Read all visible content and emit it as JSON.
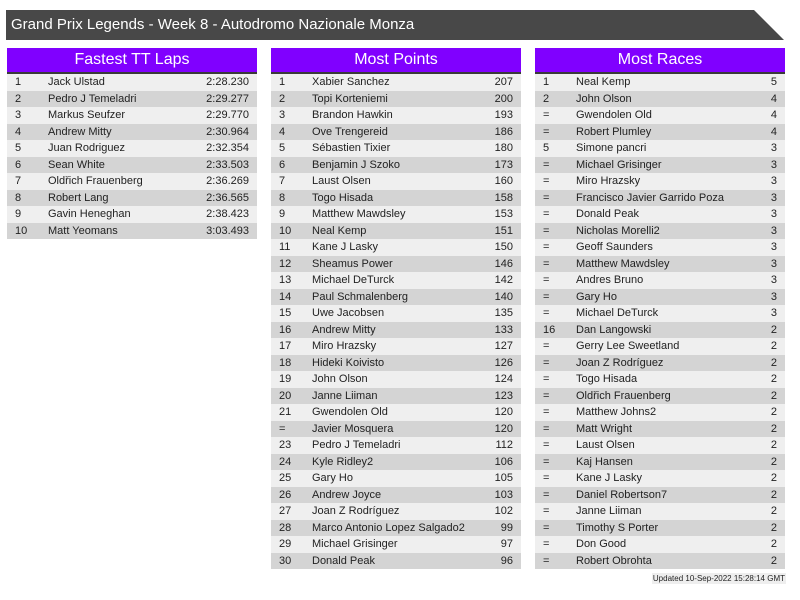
{
  "title": "Grand Prix Legends - Week 8 - Autodromo Nazionale Monza",
  "colors": {
    "header": "#8000ff",
    "title_bar": "#484848",
    "row_light": "#efefef",
    "row_dark": "#d4d4d4"
  },
  "tables": [
    {
      "title": "Fastest TT Laps",
      "rows": [
        [
          "1",
          "Jack Ulstad",
          "2:28.230"
        ],
        [
          "2",
          "Pedro J Temeladri",
          "2:29.277"
        ],
        [
          "3",
          "Markus Seufzer",
          "2:29.770"
        ],
        [
          "4",
          "Andrew Mitty",
          "2:30.964"
        ],
        [
          "5",
          "Juan Rodriguez",
          "2:32.354"
        ],
        [
          "6",
          "Sean White",
          "2:33.503"
        ],
        [
          "7",
          "Oldřich Frauenberg",
          "2:36.269"
        ],
        [
          "8",
          "Robert Lang",
          "2:36.565"
        ],
        [
          "9",
          "Gavin Heneghan",
          "2:38.423"
        ],
        [
          "10",
          "Matt Yeomans",
          "3:03.493"
        ]
      ]
    },
    {
      "title": "Most Points",
      "rows": [
        [
          "1",
          "Xabier Sanchez",
          "207"
        ],
        [
          "2",
          "Topi Korteniemi",
          "200"
        ],
        [
          "3",
          "Brandon Hawkin",
          "193"
        ],
        [
          "4",
          "Ove Trengereid",
          "186"
        ],
        [
          "5",
          "Sébastien Tixier",
          "180"
        ],
        [
          "6",
          "Benjamin J Szoko",
          "173"
        ],
        [
          "7",
          "Laust Olsen",
          "160"
        ],
        [
          "8",
          "Togo Hisada",
          "158"
        ],
        [
          "9",
          "Matthew Mawdsley",
          "153"
        ],
        [
          "10",
          "Neal Kemp",
          "151"
        ],
        [
          "11",
          "Kane J Lasky",
          "150"
        ],
        [
          "12",
          "Sheamus Power",
          "146"
        ],
        [
          "13",
          "Michael DeTurck",
          "142"
        ],
        [
          "14",
          "Paul Schmalenberg",
          "140"
        ],
        [
          "15",
          "Uwe Jacobsen",
          "135"
        ],
        [
          "16",
          "Andrew Mitty",
          "133"
        ],
        [
          "17",
          "Miro Hrazsky",
          "127"
        ],
        [
          "18",
          "Hideki Koivisto",
          "126"
        ],
        [
          "19",
          "John Olson",
          "124"
        ],
        [
          "20",
          "Janne Liiman",
          "123"
        ],
        [
          "21",
          "Gwendolen Old",
          "120"
        ],
        [
          "=",
          "Javier Mosquera",
          "120"
        ],
        [
          "23",
          "Pedro J Temeladri",
          "112"
        ],
        [
          "24",
          "Kyle Ridley2",
          "106"
        ],
        [
          "25",
          "Gary Ho",
          "105"
        ],
        [
          "26",
          "Andrew Joyce",
          "103"
        ],
        [
          "27",
          "Joan Z Rodríguez",
          "102"
        ],
        [
          "28",
          "Marco Antonio Lopez Salgado2",
          "99"
        ],
        [
          "29",
          "Michael Grisinger",
          "97"
        ],
        [
          "30",
          "Donald Peak",
          "96"
        ]
      ]
    },
    {
      "title": "Most Races",
      "rows": [
        [
          "1",
          "Neal Kemp",
          "5"
        ],
        [
          "2",
          "John Olson",
          "4"
        ],
        [
          "=",
          "Gwendolen Old",
          "4"
        ],
        [
          "=",
          "Robert Plumley",
          "4"
        ],
        [
          "5",
          "Simone pancri",
          "3"
        ],
        [
          "=",
          "Michael Grisinger",
          "3"
        ],
        [
          "=",
          "Miro Hrazsky",
          "3"
        ],
        [
          "=",
          "Francisco Javier Garrido Poza",
          "3"
        ],
        [
          "=",
          "Donald Peak",
          "3"
        ],
        [
          "=",
          "Nicholas Morelli2",
          "3"
        ],
        [
          "=",
          "Geoff Saunders",
          "3"
        ],
        [
          "=",
          "Matthew Mawdsley",
          "3"
        ],
        [
          "=",
          "Andres Bruno",
          "3"
        ],
        [
          "=",
          "Gary Ho",
          "3"
        ],
        [
          "=",
          "Michael DeTurck",
          "3"
        ],
        [
          "16",
          "Dan Langowski",
          "2"
        ],
        [
          "=",
          "Gerry Lee Sweetland",
          "2"
        ],
        [
          "=",
          "Joan Z Rodríguez",
          "2"
        ],
        [
          "=",
          "Togo Hisada",
          "2"
        ],
        [
          "=",
          "Oldřich Frauenberg",
          "2"
        ],
        [
          "=",
          "Matthew Johns2",
          "2"
        ],
        [
          "=",
          "Matt Wright",
          "2"
        ],
        [
          "=",
          "Laust Olsen",
          "2"
        ],
        [
          "=",
          "Kaj Hansen",
          "2"
        ],
        [
          "=",
          "Kane J Lasky",
          "2"
        ],
        [
          "=",
          "Daniel Robertson7",
          "2"
        ],
        [
          "=",
          "Janne Liiman",
          "2"
        ],
        [
          "=",
          "Timothy S Porter",
          "2"
        ],
        [
          "=",
          "Don Good",
          "2"
        ],
        [
          "=",
          "Robert Obrohta",
          "2"
        ]
      ]
    }
  ],
  "footer": "Updated 10-Sep-2022 15:28:14 GMT"
}
